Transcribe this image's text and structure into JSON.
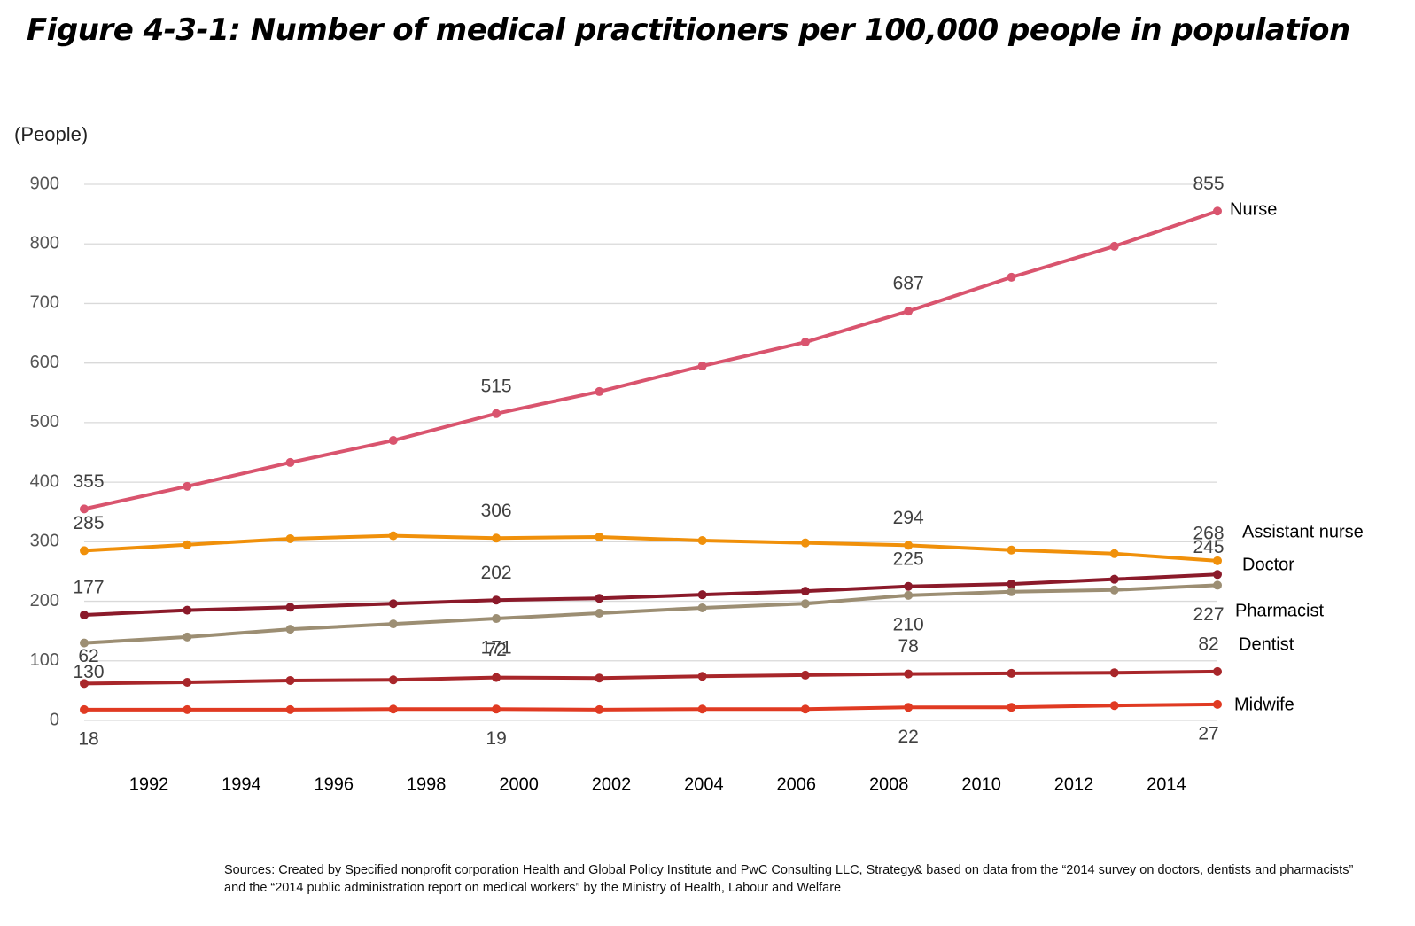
{
  "chart_data": {
    "type": "line",
    "title": "Figure 4-3-1: Number of medical practitioners per 100,000 people in population",
    "y_label": "(People)",
    "source": "Sources: Created by Specified nonprofit corporation Health and Global Policy Institute and PwC Consulting LLC, Strategy& based on data from the “2014 survey on doctors, dentists and pharmacists” and the “2014 public administration report on medical workers” by the Ministry of Health, Labour and Welfare",
    "categories": [
      "1992",
      "1994",
      "1996",
      "1998",
      "2000",
      "2002",
      "2004",
      "2006",
      "2008",
      "2010",
      "2012",
      "2014"
    ],
    "ylim": [
      0,
      900
    ],
    "yticks": [
      0,
      100,
      200,
      300,
      400,
      500,
      600,
      700,
      800,
      900
    ],
    "grid": true,
    "series": [
      {
        "name": "Nurse",
        "color": "#d9546e",
        "values": [
          355,
          393,
          433,
          470,
          515,
          552,
          595,
          635,
          687,
          744,
          796,
          855
        ]
      },
      {
        "name": "Assistant nurse",
        "color": "#f0900a",
        "values": [
          285,
          295,
          305,
          310,
          306,
          308,
          302,
          298,
          294,
          286,
          280,
          268
        ]
      },
      {
        "name": "Doctor",
        "color": "#8b1a2a",
        "values": [
          177,
          185,
          190,
          196,
          202,
          205,
          211,
          217,
          225,
          229,
          237,
          245
        ]
      },
      {
        "name": "Pharmacist",
        "color": "#9c8e73",
        "values": [
          130,
          140,
          153,
          162,
          171,
          180,
          189,
          196,
          210,
          216,
          219,
          227
        ]
      },
      {
        "name": "Dentist",
        "color": "#a8262a",
        "values": [
          62,
          64,
          67,
          68,
          72,
          71,
          74,
          76,
          78,
          79,
          80,
          82
        ]
      },
      {
        "name": "Midwife",
        "color": "#e03a22",
        "values": [
          18,
          18,
          18,
          19,
          19,
          18,
          19,
          19,
          22,
          22,
          25,
          27
        ]
      }
    ]
  }
}
